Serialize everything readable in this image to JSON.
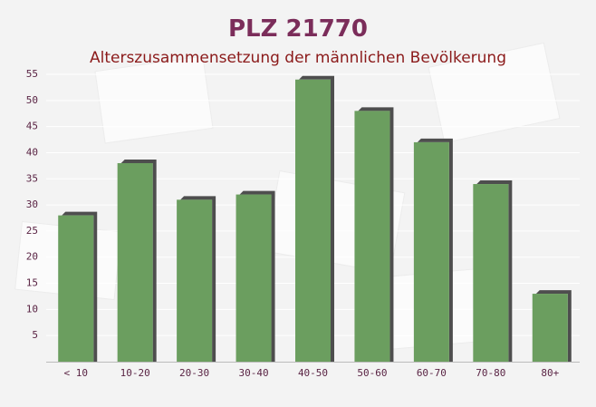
{
  "chart_data": {
    "type": "bar",
    "title": "PLZ 21770",
    "subtitle": "Alterszusammensetzung der männlichen Bevölkerung",
    "categories": [
      "< 10",
      "10-20",
      "20-30",
      "30-40",
      "40-50",
      "50-60",
      "60-70",
      "70-80",
      "80+"
    ],
    "values": [
      28,
      38,
      31,
      32,
      54,
      48,
      42,
      34,
      13
    ],
    "color": "#6b9e5f",
    "ylim": [
      0,
      55
    ],
    "yticks": [
      5,
      10,
      15,
      20,
      25,
      30,
      35,
      40,
      45,
      50,
      55
    ],
    "grid": true
  }
}
